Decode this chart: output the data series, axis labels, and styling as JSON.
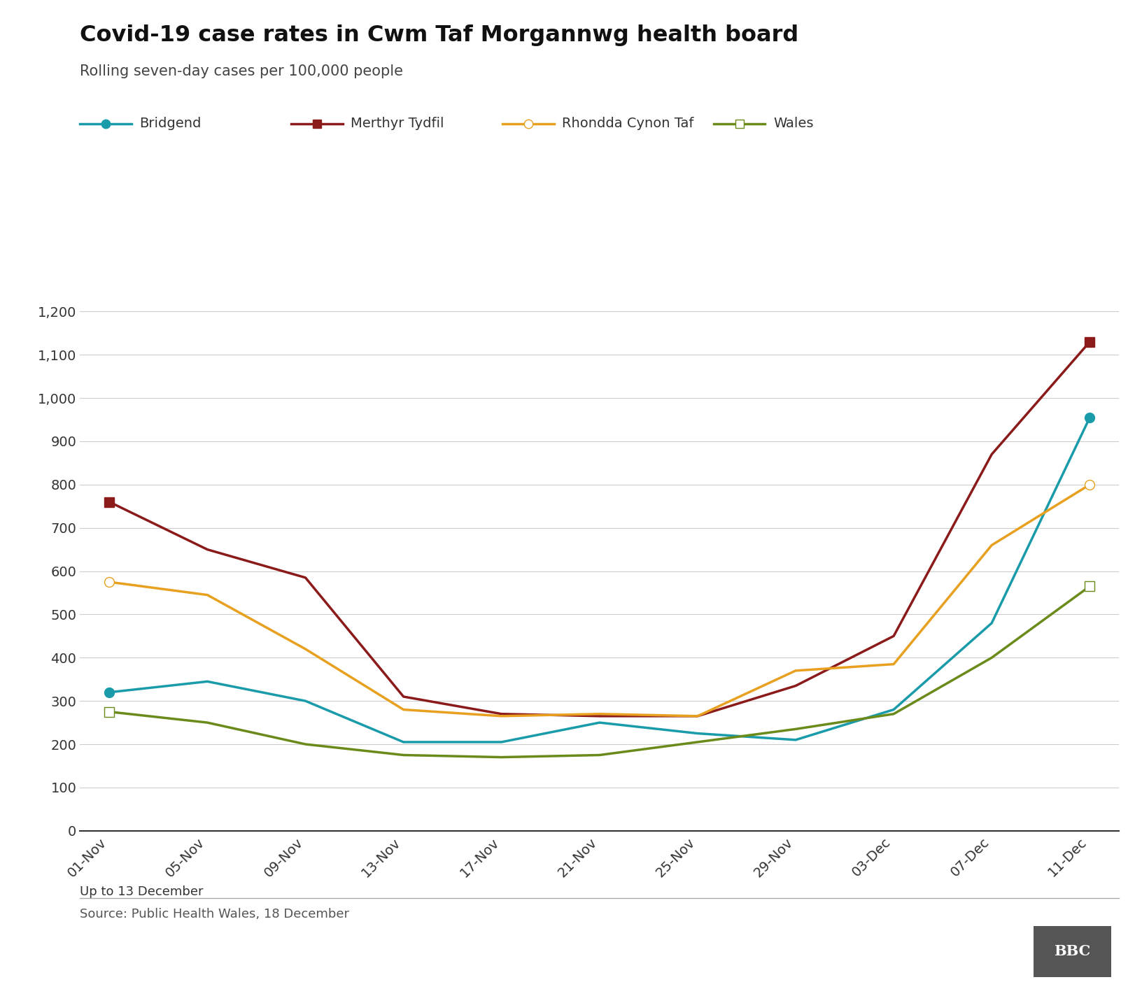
{
  "title": "Covid-19 case rates in Cwm Taf Morgannwg health board",
  "subtitle": "Rolling seven-day cases per 100,000 people",
  "source_note": "Up to 13 December",
  "source": "Source: Public Health Wales, 18 December",
  "x_labels": [
    "01-Nov",
    "05-Nov",
    "09-Nov",
    "13-Nov",
    "17-Nov",
    "21-Nov",
    "25-Nov",
    "29-Nov",
    "03-Dec",
    "07-Dec",
    "11-Dec"
  ],
  "series": {
    "Bridgend": {
      "color": "#1a9baa",
      "marker": "o",
      "markerfacecolor": "#1a9baa",
      "markersize": 10,
      "values": [
        320,
        345,
        300,
        205,
        205,
        250,
        225,
        210,
        280,
        480,
        955
      ]
    },
    "Merthyr Tydfil": {
      "color": "#8b1a1a",
      "marker": "s",
      "markerfacecolor": "#8b1a1a",
      "markersize": 10,
      "values": [
        760,
        650,
        585,
        310,
        270,
        265,
        265,
        335,
        450,
        870,
        1130
      ]
    },
    "Rhondda Cynon Taf": {
      "color": "#e8a020",
      "marker": "o",
      "markerfacecolor": "white",
      "markersize": 10,
      "values": [
        575,
        545,
        420,
        280,
        265,
        270,
        265,
        370,
        385,
        660,
        800
      ]
    },
    "Wales": {
      "color": "#6a8a1a",
      "marker": "s",
      "markerfacecolor": "white",
      "markersize": 10,
      "values": [
        275,
        250,
        200,
        175,
        170,
        175,
        205,
        235,
        270,
        400,
        565
      ]
    }
  },
  "ylim": [
    0,
    1280
  ],
  "yticks": [
    0,
    100,
    200,
    300,
    400,
    500,
    600,
    700,
    800,
    900,
    1000,
    1100,
    1200
  ],
  "background_color": "#ffffff",
  "title_fontsize": 23,
  "subtitle_fontsize": 15,
  "tick_fontsize": 14,
  "legend_fontsize": 14,
  "source_fontsize": 13
}
